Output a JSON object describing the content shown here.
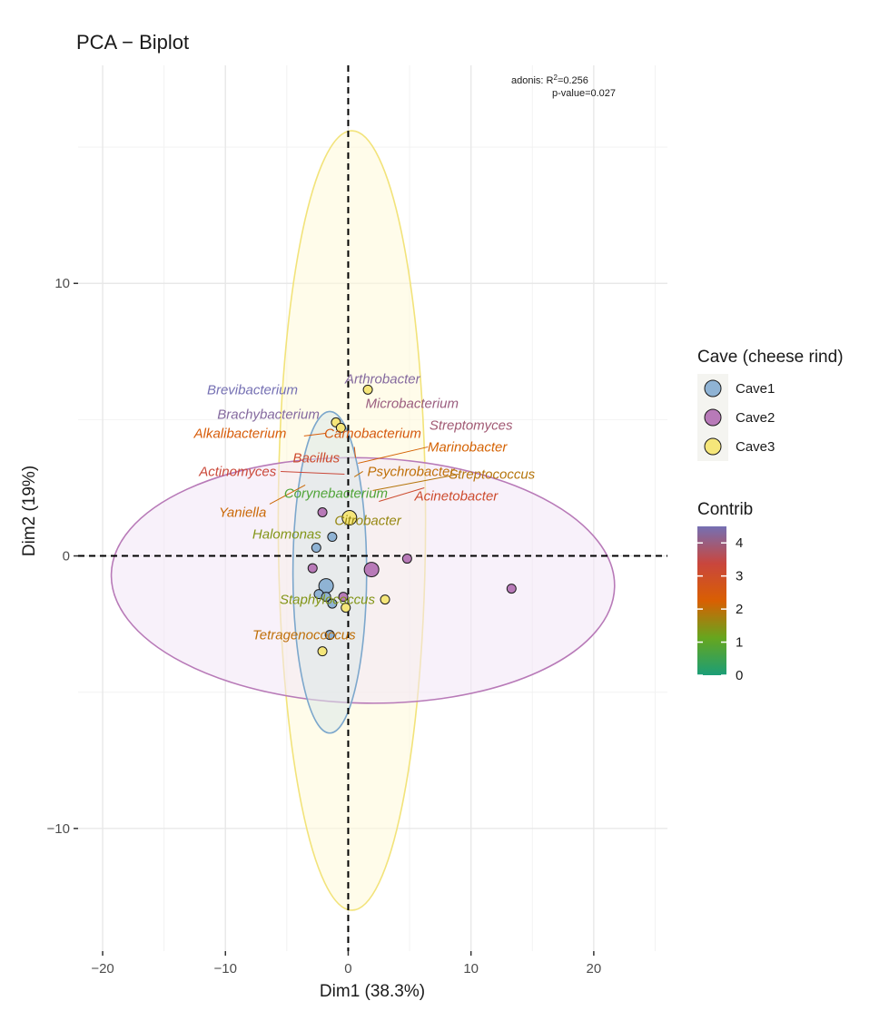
{
  "chart_data": {
    "type": "scatter",
    "title": "PCA − Biplot",
    "xlabel": "Dim1 (38.3%)",
    "ylabel": "Dim2 (19%)",
    "xlim": [
      -22,
      26
    ],
    "ylim": [
      -14.5,
      18
    ],
    "x_ticks": [
      -20,
      -10,
      0,
      10,
      20
    ],
    "x_tick_labels": [
      "−20",
      "−10",
      "0",
      "10",
      "20"
    ],
    "y_ticks": [
      -10,
      0,
      10
    ],
    "y_tick_labels": [
      "−10",
      "0",
      "10"
    ],
    "grid": true,
    "annotation": {
      "line1_prefix": "adonis: R",
      "line1_sup": "2",
      "line1_suffix": "=0.256",
      "line2": "p-value=0.027"
    },
    "legend_cave": {
      "title": "Cave (cheese rind)",
      "position": "right",
      "items": [
        {
          "label": "Cave1",
          "color": "#8fb3d4"
        },
        {
          "label": "Cave2",
          "color": "#b87ab8"
        },
        {
          "label": "Cave3",
          "color": "#f5e67a"
        }
      ]
    },
    "legend_contrib": {
      "title": "Contrib",
      "min": 0,
      "max": 4.5,
      "ticks": [
        "0",
        "1",
        "2",
        "3",
        "4"
      ],
      "gradient": [
        "#1b9e77",
        "#66a61e",
        "#d95f02",
        "#c9463d",
        "#7570b3"
      ]
    },
    "ellipses": [
      {
        "group": "Cave3",
        "cx": 0.3,
        "cy": 1.3,
        "rx": 6.0,
        "ry": 14.3,
        "fill": "#fff9d9",
        "stroke": "#f2e37a"
      },
      {
        "group": "Cave2",
        "cx": 1.2,
        "cy": -0.9,
        "rx": 20.5,
        "ry": 4.5,
        "angle": -1.5,
        "fill": "#f2e6f5",
        "stroke": "#b87ab8"
      },
      {
        "group": "Cave1",
        "cx": -1.5,
        "cy": -0.6,
        "rx": 3.0,
        "ry": 5.9,
        "fill": "#dbe8e8",
        "stroke": "#7ca7cc"
      }
    ],
    "series": [
      {
        "name": "Cave1",
        "color": "#8fb3d4",
        "points": [
          {
            "x": -1.8,
            "y": -1.1,
            "size": 8
          },
          {
            "x": -2.6,
            "y": 0.3,
            "size": 5
          },
          {
            "x": -1.3,
            "y": 0.7,
            "size": 5
          },
          {
            "x": -2.4,
            "y": -1.4,
            "size": 5
          },
          {
            "x": -1.8,
            "y": -1.5,
            "size": 5
          },
          {
            "x": -1.3,
            "y": -1.75,
            "size": 5
          },
          {
            "x": -1.5,
            "y": -2.9,
            "size": 5
          }
        ]
      },
      {
        "name": "Cave2",
        "color": "#b87ab8",
        "points": [
          {
            "x": 1.9,
            "y": -0.5,
            "size": 8
          },
          {
            "x": 13.3,
            "y": -1.2,
            "size": 5
          },
          {
            "x": 4.8,
            "y": -0.1,
            "size": 5
          },
          {
            "x": -2.1,
            "y": 1.6,
            "size": 5
          },
          {
            "x": -2.9,
            "y": -0.45,
            "size": 5
          },
          {
            "x": -0.4,
            "y": -1.5,
            "size": 5
          }
        ]
      },
      {
        "name": "Cave3",
        "color": "#f5e67a",
        "points": [
          {
            "x": 0.1,
            "y": 1.4,
            "size": 8
          },
          {
            "x": 1.6,
            "y": 6.1,
            "size": 5
          },
          {
            "x": -1.0,
            "y": 4.9,
            "size": 5
          },
          {
            "x": -0.6,
            "y": 4.7,
            "size": 5
          },
          {
            "x": 3.0,
            "y": -1.6,
            "size": 5
          },
          {
            "x": -0.2,
            "y": -1.9,
            "size": 5
          },
          {
            "x": -2.1,
            "y": -3.5,
            "size": 5
          }
        ]
      }
    ],
    "variables": [
      {
        "name": "Brevibacterium",
        "contrib": 4.5,
        "lx": -7.8,
        "ly": 6.1
      },
      {
        "name": "Arthrobacter",
        "contrib": 4.3,
        "lx": 2.8,
        "ly": 6.5
      },
      {
        "name": "Microbacterium",
        "contrib": 4.0,
        "lx": 5.2,
        "ly": 5.6
      },
      {
        "name": "Brachybacterium",
        "contrib": 4.3,
        "lx": -6.5,
        "ly": 5.2
      },
      {
        "name": "Streptomyces",
        "contrib": 3.9,
        "lx": 10.0,
        "ly": 4.8
      },
      {
        "name": "Alkalibacterium",
        "contrib": 2.4,
        "lx": -8.8,
        "ly": 4.5,
        "ax": -3.6,
        "ay": 4.4,
        "bx": -1.8,
        "by": 4.5
      },
      {
        "name": "Carnobacterium",
        "contrib": 2.5,
        "lx": 2.0,
        "ly": 4.5,
        "ax": 0.5,
        "ay": 4.0,
        "bx": 0.6,
        "by": 3.6
      },
      {
        "name": "Marinobacter",
        "contrib": 2.2,
        "lx": 9.7,
        "ly": 4.0,
        "ax": 6.5,
        "ay": 4.0,
        "bx": 0.8,
        "by": 3.4
      },
      {
        "name": "Bacillus",
        "contrib": 3.1,
        "lx": -2.6,
        "ly": 3.6
      },
      {
        "name": "Actinomyces",
        "contrib": 3.3,
        "lx": -9.0,
        "ly": 3.1,
        "ax": -5.5,
        "ay": 3.1,
        "bx": -0.3,
        "by": 3.0
      },
      {
        "name": "Psychrobacter",
        "contrib": 2.0,
        "lx": 5.1,
        "ly": 3.1,
        "ax": 1.2,
        "ay": 3.1,
        "bx": 0.5,
        "by": 2.9
      },
      {
        "name": "Streptococcus",
        "contrib": 1.9,
        "lx": 11.7,
        "ly": 3.0,
        "ax": 9.0,
        "ay": 3.0,
        "bx": 2.0,
        "by": 2.4
      },
      {
        "name": "Corynebacterium",
        "contrib": 0.8,
        "lx": -1.0,
        "ly": 2.3
      },
      {
        "name": "Acinetobacter",
        "contrib": 3.1,
        "lx": 8.8,
        "ly": 2.2,
        "ax": 6.2,
        "ay": 2.5,
        "bx": 2.5,
        "by": 2.0
      },
      {
        "name": "Yaniella",
        "contrib": 2.1,
        "lx": -8.6,
        "ly": 1.6,
        "ax": -6.4,
        "ay": 1.9,
        "bx": -3.5,
        "by": 2.6
      },
      {
        "name": "Citrobacter",
        "contrib": 1.6,
        "lx": 1.6,
        "ly": 1.3
      },
      {
        "name": "Halomonas",
        "contrib": 1.4,
        "lx": -5.0,
        "ly": 0.8
      },
      {
        "name": "Staphylococcus",
        "contrib": 1.4,
        "lx": -1.7,
        "ly": -1.6
      },
      {
        "name": "Tetragenococcus",
        "contrib": 2.0,
        "lx": -3.6,
        "ly": -2.9
      }
    ]
  }
}
